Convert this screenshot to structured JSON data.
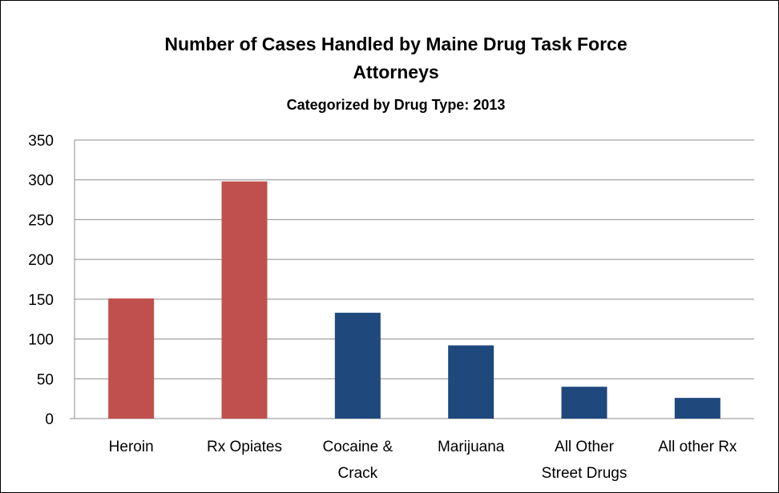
{
  "chart_data": {
    "type": "bar",
    "title_lines": [
      "Number of Cases Handled by Maine Drug Task Force",
      "Attorneys"
    ],
    "subtitle": "Categorized by Drug Type: 2013",
    "categories": [
      [
        "Heroin"
      ],
      [
        "Rx Opiates"
      ],
      [
        "Cocaine &",
        "Crack"
      ],
      [
        "Marijuana"
      ],
      [
        "All Other",
        "Street Drugs"
      ],
      [
        "All other Rx"
      ]
    ],
    "values": [
      151,
      298,
      133,
      92,
      40,
      26
    ],
    "bar_colors": [
      "#c0504d",
      "#c0504d",
      "#1f497d",
      "#1f497d",
      "#1f497d",
      "#1f497d"
    ],
    "ylim": [
      0,
      350
    ],
    "yticks": [
      0,
      50,
      100,
      150,
      200,
      250,
      300,
      350
    ],
    "grid": true,
    "legend": "none"
  }
}
